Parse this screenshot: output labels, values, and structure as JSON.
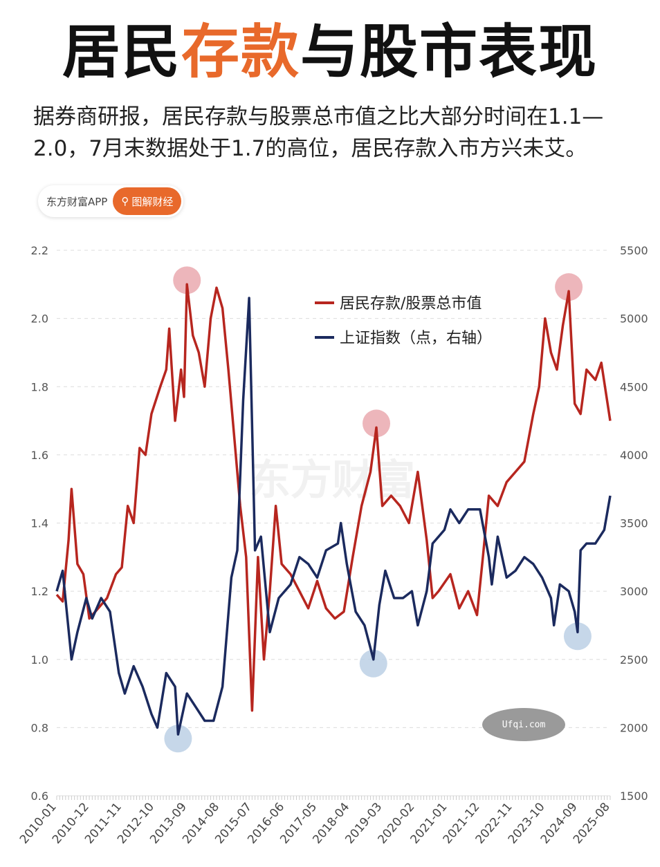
{
  "header": {
    "title_parts": [
      "居民",
      "存款",
      "与股市表现"
    ],
    "subtitle": "据券商研报，居民存款与股票总市值之比大部分时间在1.1—2.0，7月末数据处于1.7的高位，居民存款入市方兴未艾。",
    "source_label": "东方财富APP",
    "button_label": "图解财经",
    "button_icon": "search-icon"
  },
  "watermarks": {
    "center": "东方财富",
    "corner": "Ufqi.com"
  },
  "colors": {
    "ratio": "#b7261f",
    "index": "#1b2a5e",
    "accent": "#e8692b",
    "highlight_red": "#e8a4aa",
    "highlight_blue": "#b8cde3"
  },
  "chart_data": {
    "type": "line",
    "legend_position": "top-right",
    "grid": "horizontal-dashed",
    "x_ticks": [
      "2010-01",
      "2010-12",
      "2011-11",
      "2012-10",
      "2013-09",
      "2014-08",
      "2015-07",
      "2016-06",
      "2017-05",
      "2018-04",
      "2019-03",
      "2020-02",
      "2021-01",
      "2021-12",
      "2022-11",
      "2023-10",
      "2024-09",
      "2025-08"
    ],
    "y_left": {
      "lim": [
        0.6,
        2.2
      ],
      "ticks": [
        "0.6",
        "0.8",
        "1.0",
        "1.2",
        "1.4",
        "1.6",
        "1.8",
        "2.0",
        "2.2"
      ]
    },
    "y_right": {
      "lim": [
        1500,
        5500
      ],
      "ticks": [
        "1500",
        "2000",
        "2500",
        "3000",
        "3500",
        "4000",
        "4500",
        "5000",
        "5500"
      ]
    },
    "series": [
      {
        "name": "居民存款/股票总市值",
        "axis": "left",
        "color": "#b7261f",
        "points": [
          [
            "2010-01",
            1.19
          ],
          [
            "2010-03",
            1.17
          ],
          [
            "2010-05",
            1.35
          ],
          [
            "2010-06",
            1.5
          ],
          [
            "2010-08",
            1.28
          ],
          [
            "2010-10",
            1.25
          ],
          [
            "2010-12",
            1.12
          ],
          [
            "2011-03",
            1.15
          ],
          [
            "2011-06",
            1.18
          ],
          [
            "2011-09",
            1.25
          ],
          [
            "2011-11",
            1.27
          ],
          [
            "2012-01",
            1.45
          ],
          [
            "2012-03",
            1.4
          ],
          [
            "2012-05",
            1.62
          ],
          [
            "2012-07",
            1.6
          ],
          [
            "2012-09",
            1.72
          ],
          [
            "2012-12",
            1.8
          ],
          [
            "2013-02",
            1.85
          ],
          [
            "2013-03",
            1.97
          ],
          [
            "2013-05",
            1.7
          ],
          [
            "2013-07",
            1.85
          ],
          [
            "2013-08",
            1.77
          ],
          [
            "2013-09",
            2.1
          ],
          [
            "2013-11",
            1.95
          ],
          [
            "2014-01",
            1.9
          ],
          [
            "2014-03",
            1.8
          ],
          [
            "2014-05",
            2.0
          ],
          [
            "2014-07",
            2.09
          ],
          [
            "2014-09",
            2.03
          ],
          [
            "2014-11",
            1.85
          ],
          [
            "2015-01",
            1.65
          ],
          [
            "2015-03",
            1.45
          ],
          [
            "2015-05",
            1.3
          ],
          [
            "2015-07",
            0.85
          ],
          [
            "2015-09",
            1.3
          ],
          [
            "2015-11",
            1.0
          ],
          [
            "2016-01",
            1.2
          ],
          [
            "2016-03",
            1.45
          ],
          [
            "2016-05",
            1.28
          ],
          [
            "2016-08",
            1.25
          ],
          [
            "2016-11",
            1.2
          ],
          [
            "2017-02",
            1.15
          ],
          [
            "2017-05",
            1.23
          ],
          [
            "2017-08",
            1.15
          ],
          [
            "2017-11",
            1.12
          ],
          [
            "2018-02",
            1.14
          ],
          [
            "2018-05",
            1.3
          ],
          [
            "2018-08",
            1.45
          ],
          [
            "2018-11",
            1.55
          ],
          [
            "2019-01",
            1.68
          ],
          [
            "2019-03",
            1.45
          ],
          [
            "2019-06",
            1.48
          ],
          [
            "2019-09",
            1.45
          ],
          [
            "2019-12",
            1.4
          ],
          [
            "2020-03",
            1.55
          ],
          [
            "2020-06",
            1.35
          ],
          [
            "2020-08",
            1.18
          ],
          [
            "2020-10",
            1.2
          ],
          [
            "2021-02",
            1.25
          ],
          [
            "2021-05",
            1.15
          ],
          [
            "2021-08",
            1.2
          ],
          [
            "2021-11",
            1.13
          ],
          [
            "2022-01",
            1.3
          ],
          [
            "2022-03",
            1.48
          ],
          [
            "2022-06",
            1.45
          ],
          [
            "2022-09",
            1.52
          ],
          [
            "2022-12",
            1.55
          ],
          [
            "2023-03",
            1.58
          ],
          [
            "2023-06",
            1.72
          ],
          [
            "2023-08",
            1.8
          ],
          [
            "2023-10",
            2.0
          ],
          [
            "2023-12",
            1.9
          ],
          [
            "2024-02",
            1.85
          ],
          [
            "2024-04",
            1.98
          ],
          [
            "2024-06",
            2.08
          ],
          [
            "2024-08",
            1.75
          ],
          [
            "2024-10",
            1.72
          ],
          [
            "2024-12",
            1.85
          ],
          [
            "2025-03",
            1.82
          ],
          [
            "2025-05",
            1.87
          ],
          [
            "2025-08",
            1.7
          ]
        ]
      },
      {
        "name": "上证指数（点，右轴）",
        "axis": "right",
        "color": "#1b2a5e",
        "points": [
          [
            "2010-01",
            3000
          ],
          [
            "2010-03",
            3150
          ],
          [
            "2010-06",
            2500
          ],
          [
            "2010-08",
            2700
          ],
          [
            "2010-11",
            2950
          ],
          [
            "2011-01",
            2800
          ],
          [
            "2011-04",
            2950
          ],
          [
            "2011-07",
            2850
          ],
          [
            "2011-10",
            2400
          ],
          [
            "2011-12",
            2250
          ],
          [
            "2012-03",
            2450
          ],
          [
            "2012-06",
            2300
          ],
          [
            "2012-09",
            2100
          ],
          [
            "2012-11",
            2000
          ],
          [
            "2013-02",
            2400
          ],
          [
            "2013-05",
            2300
          ],
          [
            "2013-06",
            1950
          ],
          [
            "2013-09",
            2250
          ],
          [
            "2013-12",
            2150
          ],
          [
            "2014-03",
            2050
          ],
          [
            "2014-06",
            2050
          ],
          [
            "2014-09",
            2300
          ],
          [
            "2014-12",
            3100
          ],
          [
            "2015-02",
            3300
          ],
          [
            "2015-04",
            4400
          ],
          [
            "2015-06",
            5150
          ],
          [
            "2015-08",
            3300
          ],
          [
            "2015-10",
            3400
          ],
          [
            "2016-01",
            2700
          ],
          [
            "2016-04",
            2950
          ],
          [
            "2016-08",
            3050
          ],
          [
            "2016-11",
            3250
          ],
          [
            "2017-02",
            3200
          ],
          [
            "2017-05",
            3100
          ],
          [
            "2017-08",
            3300
          ],
          [
            "2017-12",
            3350
          ],
          [
            "2018-01",
            3500
          ],
          [
            "2018-03",
            3200
          ],
          [
            "2018-06",
            2850
          ],
          [
            "2018-09",
            2750
          ],
          [
            "2018-12",
            2500
          ],
          [
            "2019-02",
            2900
          ],
          [
            "2019-04",
            3150
          ],
          [
            "2019-07",
            2950
          ],
          [
            "2019-10",
            2950
          ],
          [
            "2020-01",
            3000
          ],
          [
            "2020-03",
            2750
          ],
          [
            "2020-06",
            3000
          ],
          [
            "2020-08",
            3350
          ],
          [
            "2020-12",
            3450
          ],
          [
            "2021-02",
            3600
          ],
          [
            "2021-05",
            3500
          ],
          [
            "2021-08",
            3600
          ],
          [
            "2021-12",
            3600
          ],
          [
            "2022-03",
            3250
          ],
          [
            "2022-04",
            3050
          ],
          [
            "2022-06",
            3400
          ],
          [
            "2022-09",
            3100
          ],
          [
            "2022-12",
            3150
          ],
          [
            "2023-03",
            3250
          ],
          [
            "2023-06",
            3200
          ],
          [
            "2023-09",
            3100
          ],
          [
            "2023-12",
            2950
          ],
          [
            "2024-01",
            2750
          ],
          [
            "2024-03",
            3050
          ],
          [
            "2024-06",
            3000
          ],
          [
            "2024-08",
            2850
          ],
          [
            "2024-09",
            2700
          ],
          [
            "2024-10",
            3300
          ],
          [
            "2024-12",
            3350
          ],
          [
            "2025-03",
            3350
          ],
          [
            "2025-06",
            3450
          ],
          [
            "2025-08",
            3700
          ]
        ]
      }
    ],
    "highlights": [
      {
        "series": 0,
        "x": "2013-09",
        "value": 2.1
      },
      {
        "series": 0,
        "x": "2019-01",
        "value": 1.68
      },
      {
        "series": 0,
        "x": "2024-06",
        "value": 2.08
      },
      {
        "series": 1,
        "x": "2013-06",
        "value": 1950
      },
      {
        "series": 1,
        "x": "2018-12",
        "value": 2500
      },
      {
        "series": 1,
        "x": "2024-09",
        "value": 2700
      }
    ]
  }
}
